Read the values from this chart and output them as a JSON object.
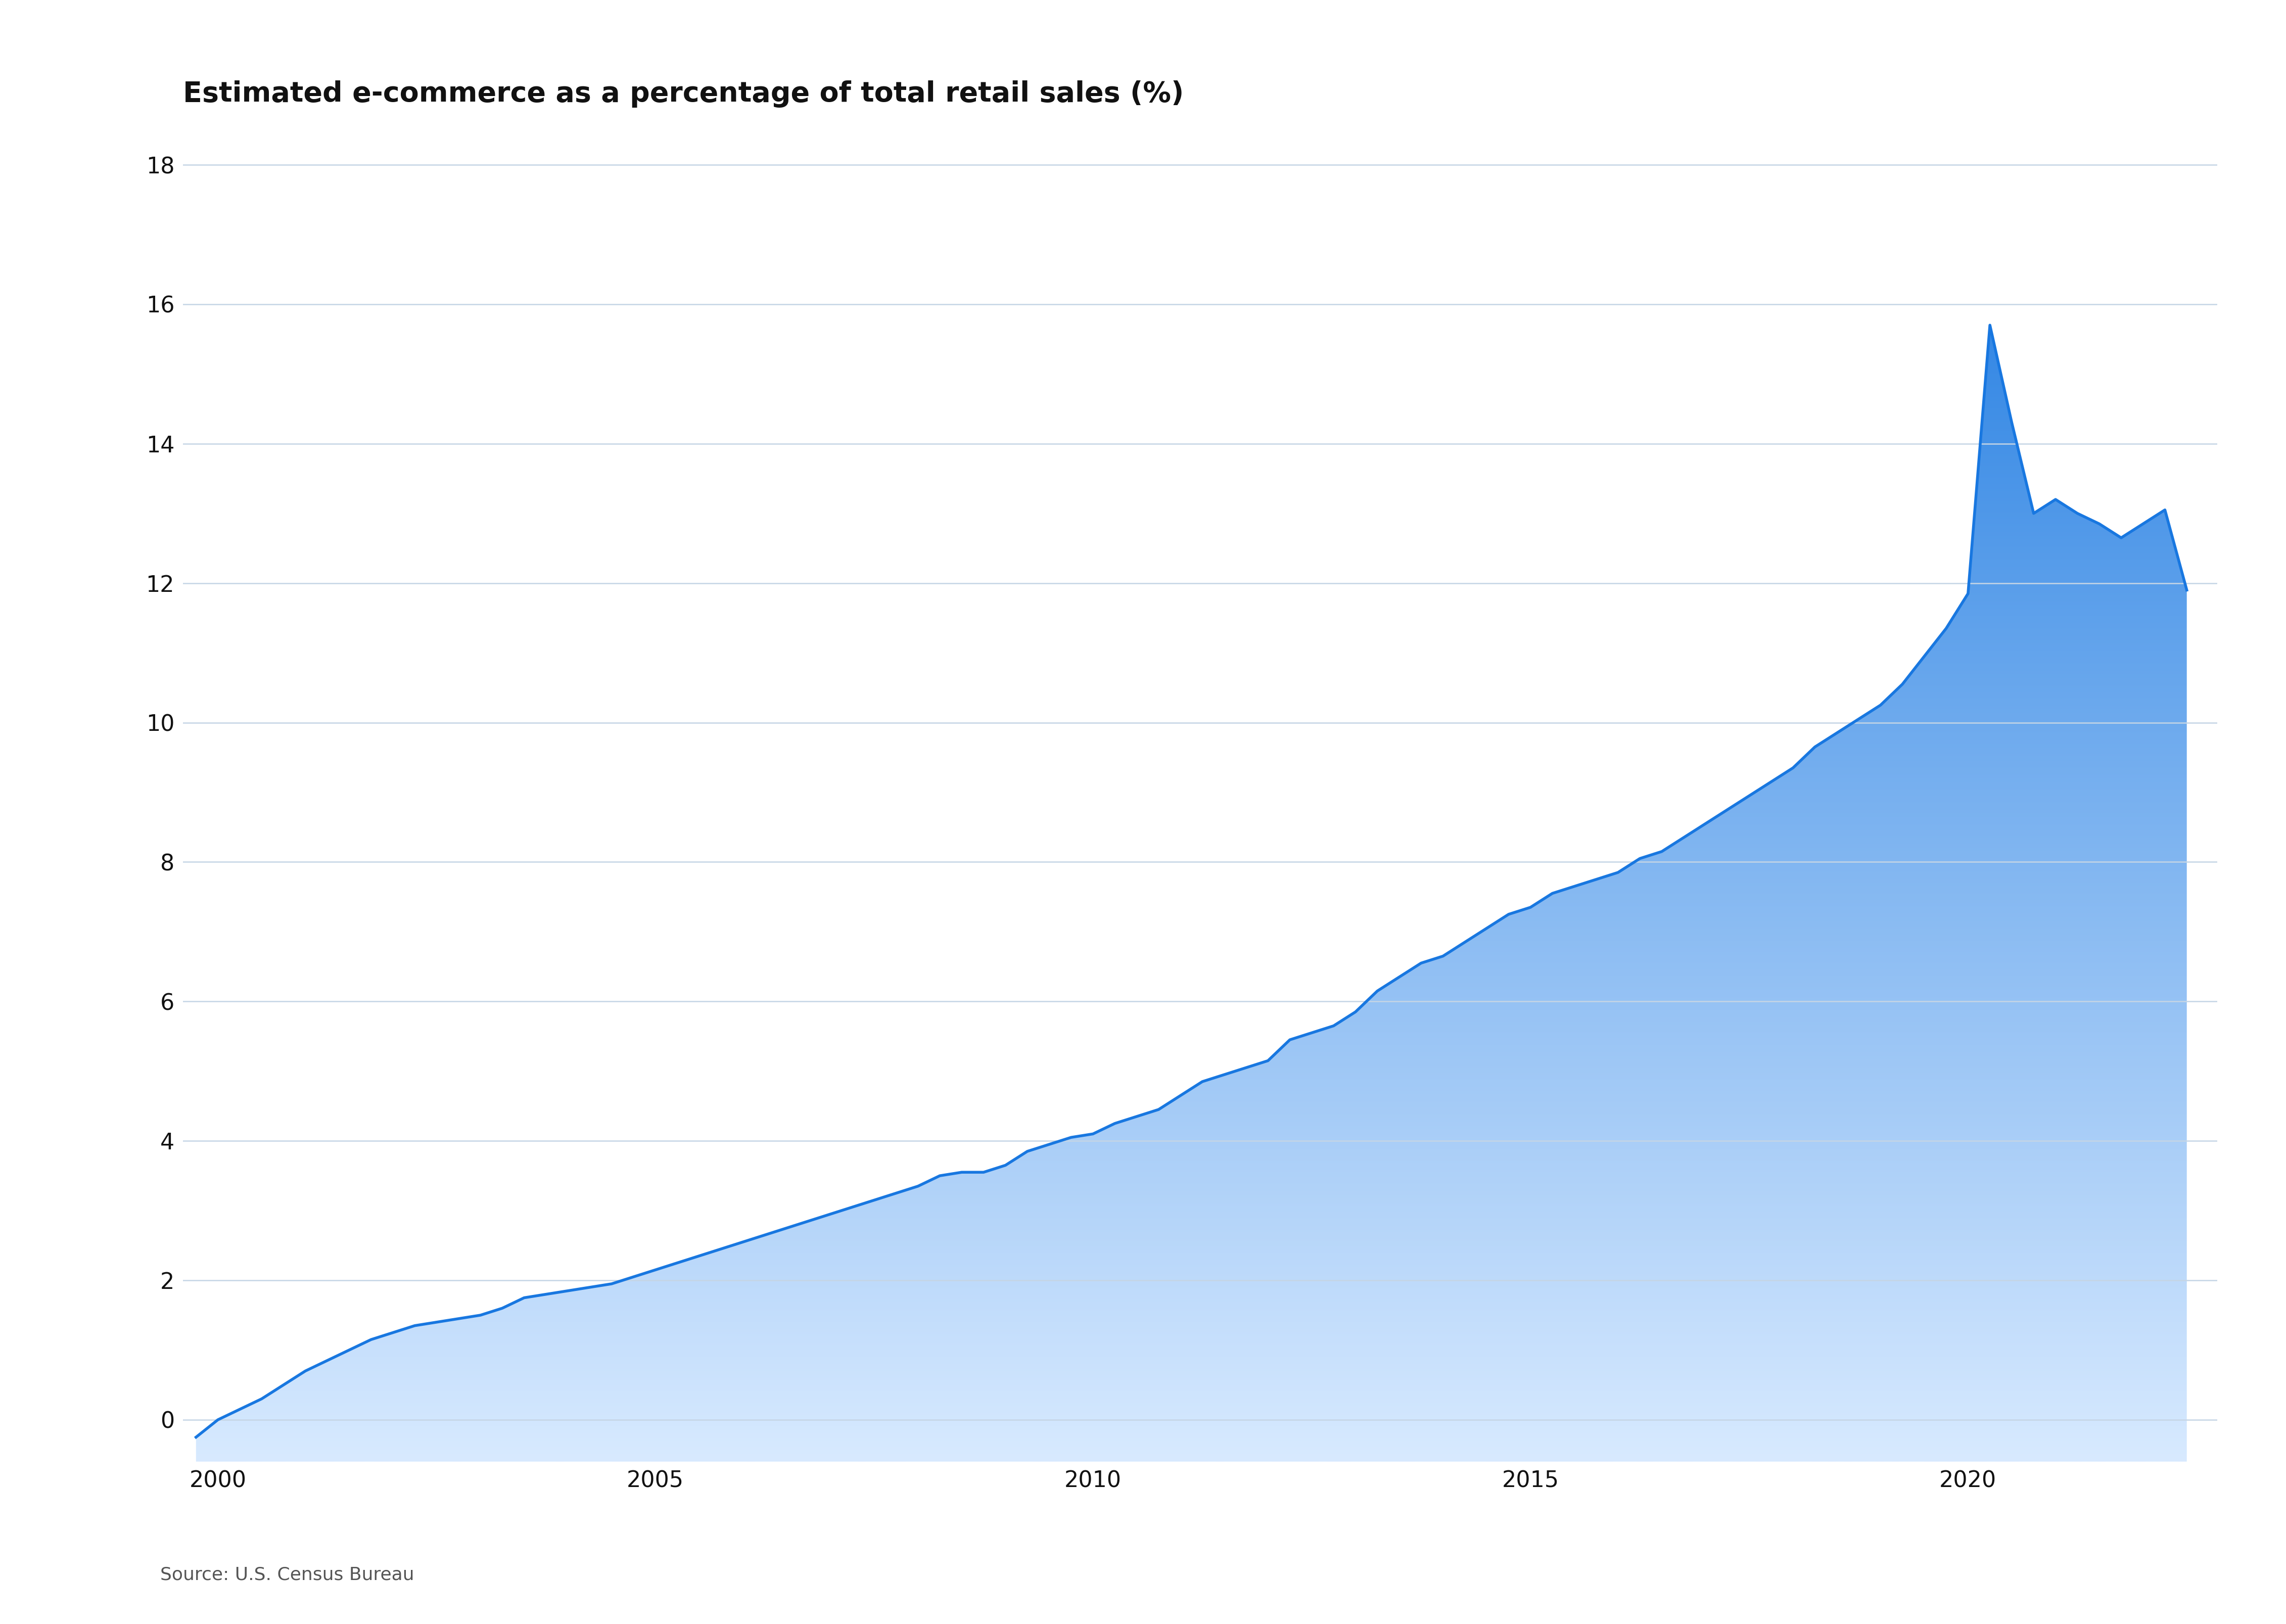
{
  "title": "Estimated e-commerce as a percentage of total retail sales (%)",
  "source": "Source: U.S. Census Bureau",
  "background_color": "#ffffff",
  "line_color_top": "#1877e0",
  "fill_color_top": "#1877e0",
  "fill_color_bottom": "#d8eaff",
  "xlim": [
    1999.6,
    2022.85
  ],
  "ylim": [
    -0.6,
    18.5
  ],
  "yticks": [
    0,
    2,
    4,
    6,
    8,
    10,
    12,
    14,
    16,
    18
  ],
  "xticks": [
    2000,
    2005,
    2010,
    2015,
    2020
  ],
  "grid_color": "#c5d5e5",
  "title_fontsize": 40,
  "tick_fontsize": 32,
  "source_fontsize": 26,
  "data": {
    "quarters": [
      1999.75,
      2000.0,
      2000.25,
      2000.5,
      2000.75,
      2001.0,
      2001.25,
      2001.5,
      2001.75,
      2002.0,
      2002.25,
      2002.5,
      2002.75,
      2003.0,
      2003.25,
      2003.5,
      2003.75,
      2004.0,
      2004.25,
      2004.5,
      2004.75,
      2005.0,
      2005.25,
      2005.5,
      2005.75,
      2006.0,
      2006.25,
      2006.5,
      2006.75,
      2007.0,
      2007.25,
      2007.5,
      2007.75,
      2008.0,
      2008.25,
      2008.5,
      2008.75,
      2009.0,
      2009.25,
      2009.5,
      2009.75,
      2010.0,
      2010.25,
      2010.5,
      2010.75,
      2011.0,
      2011.25,
      2011.5,
      2011.75,
      2012.0,
      2012.25,
      2012.5,
      2012.75,
      2013.0,
      2013.25,
      2013.5,
      2013.75,
      2014.0,
      2014.25,
      2014.5,
      2014.75,
      2015.0,
      2015.25,
      2015.5,
      2015.75,
      2016.0,
      2016.25,
      2016.5,
      2016.75,
      2017.0,
      2017.25,
      2017.5,
      2017.75,
      2018.0,
      2018.25,
      2018.5,
      2018.75,
      2019.0,
      2019.25,
      2019.5,
      2019.75,
      2020.0,
      2020.25,
      2020.5,
      2020.75,
      2021.0,
      2021.25,
      2021.5,
      2021.75,
      2022.0,
      2022.25,
      2022.5
    ],
    "values": [
      -0.25,
      0.0,
      0.15,
      0.3,
      0.5,
      0.7,
      0.85,
      1.0,
      1.15,
      1.25,
      1.35,
      1.4,
      1.45,
      1.5,
      1.6,
      1.75,
      1.8,
      1.85,
      1.9,
      1.95,
      2.05,
      2.15,
      2.25,
      2.35,
      2.45,
      2.55,
      2.65,
      2.75,
      2.85,
      2.95,
      3.05,
      3.15,
      3.25,
      3.35,
      3.5,
      3.55,
      3.55,
      3.65,
      3.85,
      3.95,
      4.05,
      4.1,
      4.25,
      4.35,
      4.45,
      4.65,
      4.85,
      4.95,
      5.05,
      5.15,
      5.45,
      5.55,
      5.65,
      5.85,
      6.15,
      6.35,
      6.55,
      6.65,
      6.85,
      7.05,
      7.25,
      7.35,
      7.55,
      7.65,
      7.75,
      7.85,
      8.05,
      8.15,
      8.35,
      8.55,
      8.75,
      8.95,
      9.15,
      9.35,
      9.65,
      9.85,
      10.05,
      10.25,
      10.55,
      10.95,
      11.35,
      11.85,
      15.7,
      14.3,
      13.0,
      13.2,
      13.0,
      12.85,
      12.65,
      12.85,
      13.05,
      11.9
    ]
  }
}
